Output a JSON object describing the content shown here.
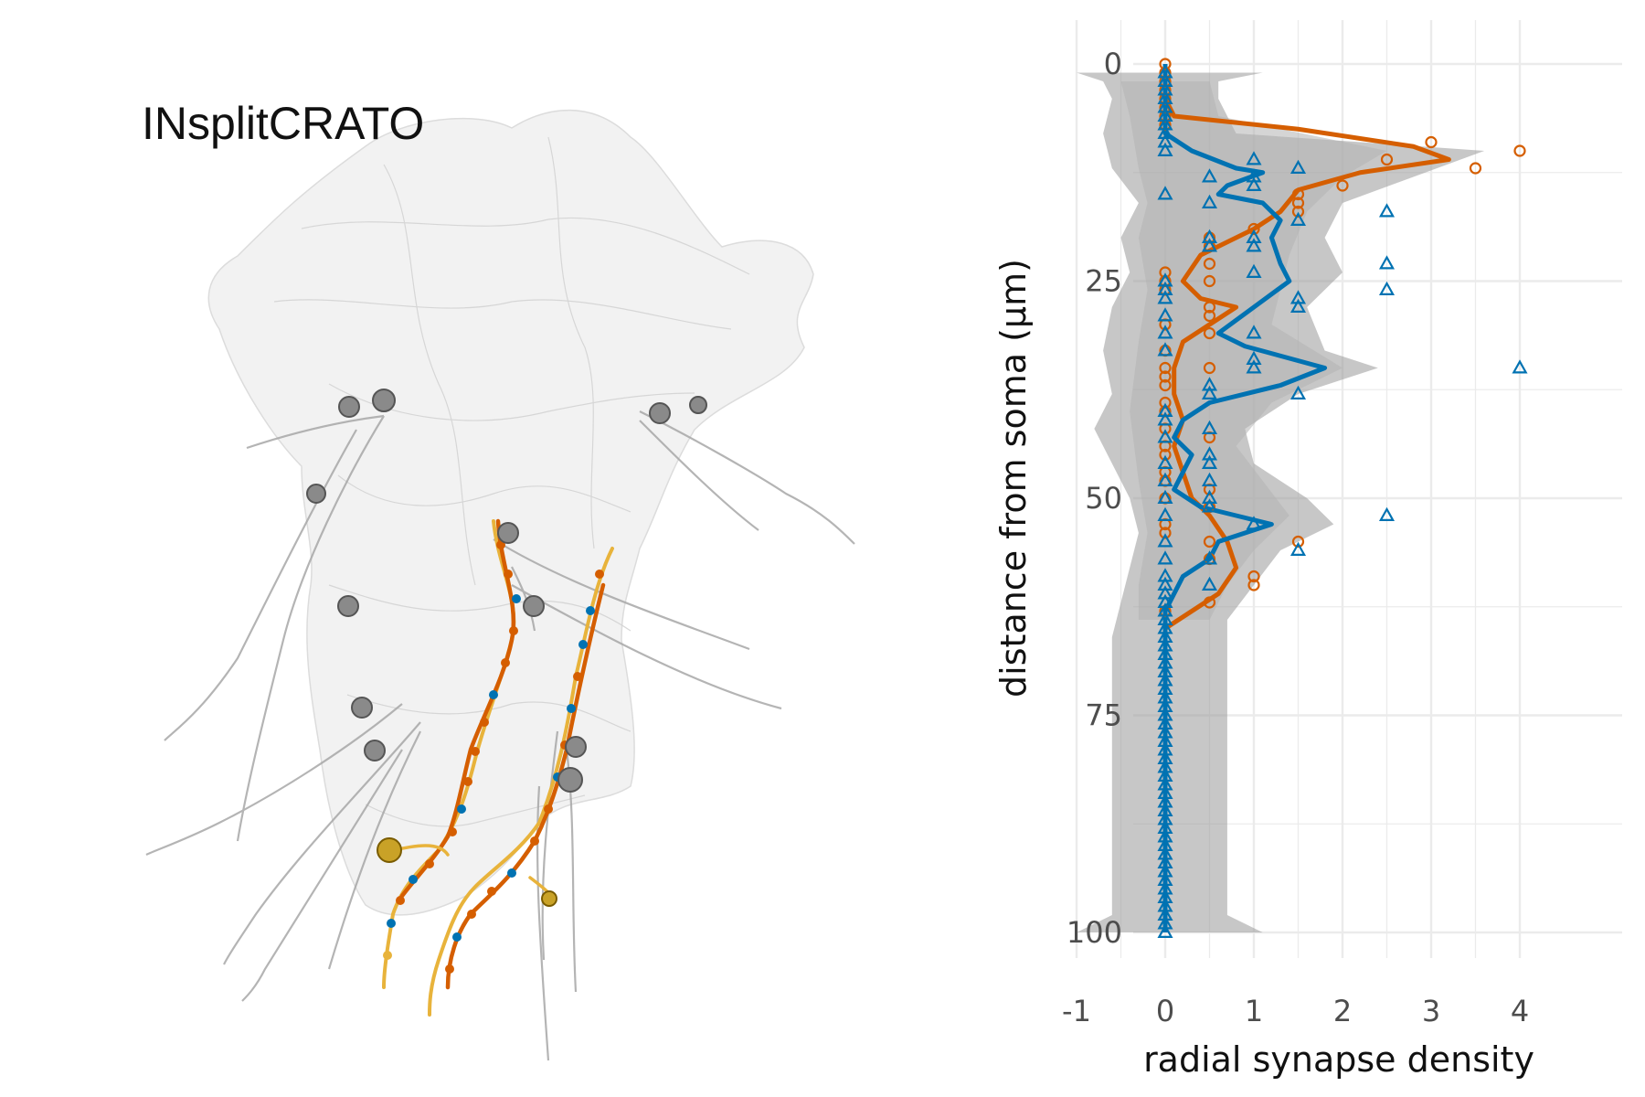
{
  "figure": {
    "neuron_label": "INsplitCRATO"
  },
  "chart_data": {
    "type": "line",
    "orientation": "vertical-profile",
    "title": "",
    "xlabel": "radial synapse density",
    "ylabel": "distance from soma (µm)",
    "xlim": [
      -1,
      4
    ],
    "ylim": [
      100,
      0
    ],
    "x_ticks": [
      "-1",
      "0",
      "1",
      "2",
      "3",
      "4"
    ],
    "y_ticks": [
      "0",
      "25",
      "50",
      "75",
      "100"
    ],
    "grid": true,
    "legend": "none",
    "colors": {
      "orange": "#D55E00",
      "blue": "#0072B2",
      "band": "#999999"
    },
    "series": [
      {
        "color": "#D55E00",
        "marker": "circle",
        "line_points": [
          [
            0,
            0
          ],
          [
            0,
            2
          ],
          [
            0,
            4
          ],
          [
            0.1,
            6
          ],
          [
            1.5,
            7.5
          ],
          [
            2.8,
            9.5
          ],
          [
            3.2,
            11
          ],
          [
            2.2,
            12.5
          ],
          [
            1.5,
            14.5
          ],
          [
            1.3,
            17
          ],
          [
            1.0,
            19
          ],
          [
            0.4,
            22
          ],
          [
            0.2,
            25
          ],
          [
            0.4,
            27
          ],
          [
            0.8,
            28
          ],
          [
            0.5,
            30
          ],
          [
            0.2,
            32
          ],
          [
            0.1,
            35
          ],
          [
            0.1,
            38
          ],
          [
            0.2,
            41
          ],
          [
            0.1,
            44
          ],
          [
            0.2,
            47
          ],
          [
            0.3,
            50
          ],
          [
            0.5,
            52
          ],
          [
            0.7,
            55
          ],
          [
            0.8,
            58
          ],
          [
            0.6,
            61
          ],
          [
            0.3,
            63
          ],
          [
            0,
            65
          ],
          [
            0,
            100
          ]
        ],
        "points": [
          [
            0,
            0
          ],
          [
            0,
            1
          ],
          [
            0,
            2
          ],
          [
            0,
            3
          ],
          [
            0,
            4
          ],
          [
            0,
            5
          ],
          [
            0,
            6
          ],
          [
            0,
            7
          ],
          [
            3.0,
            9
          ],
          [
            2.5,
            11
          ],
          [
            4.0,
            10
          ],
          [
            3.5,
            12
          ],
          [
            2.0,
            14
          ],
          [
            1.5,
            15
          ],
          [
            1.5,
            16
          ],
          [
            1.5,
            17
          ],
          [
            0.5,
            20
          ],
          [
            0.5,
            21
          ],
          [
            1.0,
            19
          ],
          [
            0.5,
            23
          ],
          [
            0,
            24
          ],
          [
            0,
            25
          ],
          [
            0.5,
            25
          ],
          [
            0,
            26
          ],
          [
            0.5,
            28
          ],
          [
            0.5,
            29
          ],
          [
            0,
            30
          ],
          [
            0.5,
            31
          ],
          [
            0,
            33
          ],
          [
            0,
            35
          ],
          [
            0.5,
            35
          ],
          [
            0,
            36
          ],
          [
            0,
            37
          ],
          [
            0,
            39
          ],
          [
            0,
            40
          ],
          [
            0,
            42
          ],
          [
            0.5,
            43
          ],
          [
            0,
            44
          ],
          [
            0,
            45
          ],
          [
            0,
            47
          ],
          [
            0,
            48
          ],
          [
            0.5,
            49
          ],
          [
            0,
            50
          ],
          [
            0.5,
            51
          ],
          [
            0,
            53
          ],
          [
            0,
            54
          ],
          [
            0.5,
            55
          ],
          [
            1.5,
            55
          ],
          [
            0.5,
            57
          ],
          [
            1.0,
            59
          ],
          [
            1.0,
            60
          ],
          [
            0.5,
            62
          ],
          [
            0,
            63
          ]
        ]
      },
      {
        "color": "#0072B2",
        "marker": "triangle",
        "line_points": [
          [
            0,
            0
          ],
          [
            0,
            4
          ],
          [
            0,
            8
          ],
          [
            0.3,
            10
          ],
          [
            0.8,
            12
          ],
          [
            1.1,
            12.5
          ],
          [
            0.7,
            14
          ],
          [
            0.6,
            15
          ],
          [
            1.1,
            16
          ],
          [
            1.3,
            18
          ],
          [
            1.2,
            20
          ],
          [
            1.3,
            23
          ],
          [
            1.4,
            25
          ],
          [
            1.0,
            28
          ],
          [
            0.6,
            31
          ],
          [
            0.9,
            32.5
          ],
          [
            1.8,
            35
          ],
          [
            1.3,
            37
          ],
          [
            0.5,
            39
          ],
          [
            0.2,
            41
          ],
          [
            0.1,
            43
          ],
          [
            0.3,
            45
          ],
          [
            0.2,
            47
          ],
          [
            0.1,
            49
          ],
          [
            0.4,
            51
          ],
          [
            1.2,
            53
          ],
          [
            0.6,
            55
          ],
          [
            0.5,
            57
          ],
          [
            0.2,
            59
          ],
          [
            0.1,
            61
          ],
          [
            0,
            63
          ],
          [
            0,
            100
          ]
        ],
        "points": [
          [
            0,
            1
          ],
          [
            0,
            2
          ],
          [
            0,
            3
          ],
          [
            0,
            4
          ],
          [
            0,
            5
          ],
          [
            0,
            6
          ],
          [
            0,
            7
          ],
          [
            0,
            8
          ],
          [
            0,
            9
          ],
          [
            0,
            10
          ],
          [
            1.0,
            11
          ],
          [
            1.5,
            12
          ],
          [
            0.5,
            13
          ],
          [
            1.0,
            13
          ],
          [
            1.0,
            14
          ],
          [
            0,
            15
          ],
          [
            0.5,
            16
          ],
          [
            2.5,
            17
          ],
          [
            0.5,
            20
          ],
          [
            0.5,
            21
          ],
          [
            1.0,
            20
          ],
          [
            1.0,
            21
          ],
          [
            1.5,
            18
          ],
          [
            2.5,
            23
          ],
          [
            1.0,
            24
          ],
          [
            2.5,
            26
          ],
          [
            0,
            25
          ],
          [
            0,
            26
          ],
          [
            1.5,
            27
          ],
          [
            1.5,
            28
          ],
          [
            0,
            27
          ],
          [
            0,
            29
          ],
          [
            1.0,
            31
          ],
          [
            0,
            31
          ],
          [
            0,
            33
          ],
          [
            1.0,
            34
          ],
          [
            1.0,
            35
          ],
          [
            4.0,
            35
          ],
          [
            0.5,
            37
          ],
          [
            0.5,
            38
          ],
          [
            1.5,
            38
          ],
          [
            0,
            40
          ],
          [
            0,
            41
          ],
          [
            0.5,
            42
          ],
          [
            0,
            43
          ],
          [
            0.5,
            45
          ],
          [
            0.5,
            46
          ],
          [
            0,
            46
          ],
          [
            0.5,
            48
          ],
          [
            0,
            48
          ],
          [
            0,
            50
          ],
          [
            0.5,
            50
          ],
          [
            0.5,
            51
          ],
          [
            0,
            52
          ],
          [
            2.5,
            52
          ],
          [
            1.0,
            53
          ],
          [
            0,
            55
          ],
          [
            1.5,
            56
          ],
          [
            0.5,
            57
          ],
          [
            0,
            57
          ],
          [
            0,
            59
          ],
          [
            0.5,
            60
          ],
          [
            0,
            60
          ],
          [
            0,
            61
          ],
          [
            0,
            62
          ],
          [
            0,
            63
          ],
          [
            0,
            64
          ],
          [
            0,
            65
          ],
          [
            0,
            66
          ],
          [
            0,
            67
          ],
          [
            0,
            68
          ],
          [
            0,
            69
          ],
          [
            0,
            70
          ],
          [
            0,
            71
          ],
          [
            0,
            72
          ],
          [
            0,
            73
          ],
          [
            0,
            74
          ],
          [
            0,
            75
          ],
          [
            0,
            76
          ],
          [
            0,
            77
          ],
          [
            0,
            78
          ],
          [
            0,
            79
          ],
          [
            0,
            80
          ],
          [
            0,
            81
          ],
          [
            0,
            82
          ],
          [
            0,
            83
          ],
          [
            0,
            84
          ],
          [
            0,
            85
          ],
          [
            0,
            86
          ],
          [
            0,
            87
          ],
          [
            0,
            88
          ],
          [
            0,
            89
          ],
          [
            0,
            90
          ],
          [
            0,
            91
          ],
          [
            0,
            92
          ],
          [
            0,
            93
          ],
          [
            0,
            94
          ],
          [
            0,
            95
          ],
          [
            0,
            96
          ],
          [
            0,
            97
          ],
          [
            0,
            98
          ],
          [
            0,
            99
          ],
          [
            0,
            100
          ]
        ]
      }
    ],
    "bands": [
      {
        "color": "#999999",
        "left": [
          [
            -1,
            1
          ],
          [
            -0.7,
            2
          ],
          [
            -0.6,
            4
          ],
          [
            -0.7,
            8
          ],
          [
            -0.6,
            12
          ],
          [
            -0.3,
            16
          ],
          [
            -0.5,
            20
          ],
          [
            -0.4,
            24
          ],
          [
            -0.6,
            28
          ],
          [
            -0.7,
            33
          ],
          [
            -0.6,
            38
          ],
          [
            -0.8,
            42
          ],
          [
            -0.6,
            46
          ],
          [
            -0.4,
            50
          ],
          [
            -0.3,
            54
          ],
          [
            -0.4,
            58
          ],
          [
            -0.5,
            62
          ],
          [
            -0.6,
            66
          ],
          [
            -0.6,
            70
          ],
          [
            -0.6,
            90
          ],
          [
            -0.6,
            98
          ],
          [
            -1,
            100
          ]
        ],
        "right": [
          [
            1.1,
            1
          ],
          [
            0.6,
            2
          ],
          [
            0.6,
            4
          ],
          [
            0.8,
            8
          ],
          [
            3.6,
            10
          ],
          [
            2.8,
            13
          ],
          [
            2.0,
            16
          ],
          [
            1.8,
            20
          ],
          [
            2.0,
            24
          ],
          [
            1.6,
            28
          ],
          [
            1.8,
            33
          ],
          [
            2.4,
            35
          ],
          [
            1.5,
            38
          ],
          [
            0.9,
            42
          ],
          [
            1.0,
            46
          ],
          [
            1.6,
            50
          ],
          [
            1.9,
            53
          ],
          [
            1.3,
            56
          ],
          [
            1.0,
            60
          ],
          [
            0.7,
            64
          ],
          [
            0.7,
            70
          ],
          [
            0.7,
            90
          ],
          [
            0.7,
            98
          ],
          [
            1.1,
            100
          ]
        ]
      },
      {
        "color": "#b3b3b3",
        "left": [
          [
            -0.5,
            2
          ],
          [
            -0.4,
            6
          ],
          [
            -0.3,
            12
          ],
          [
            -0.2,
            16
          ],
          [
            -0.3,
            20
          ],
          [
            -0.2,
            26
          ],
          [
            -0.3,
            32
          ],
          [
            -0.4,
            40
          ],
          [
            -0.3,
            48
          ],
          [
            -0.2,
            54
          ],
          [
            -0.3,
            60
          ],
          [
            -0.3,
            64
          ]
        ],
        "right": [
          [
            0.5,
            2
          ],
          [
            0.6,
            6
          ],
          [
            2.5,
            10
          ],
          [
            2.0,
            13
          ],
          [
            1.6,
            17
          ],
          [
            1.4,
            22
          ],
          [
            1.3,
            26
          ],
          [
            1.2,
            30
          ],
          [
            2.0,
            35
          ],
          [
            1.2,
            39
          ],
          [
            0.8,
            44
          ],
          [
            1.4,
            52
          ],
          [
            1.0,
            56
          ],
          [
            0.7,
            60
          ],
          [
            0.5,
            64
          ]
        ]
      }
    ]
  }
}
